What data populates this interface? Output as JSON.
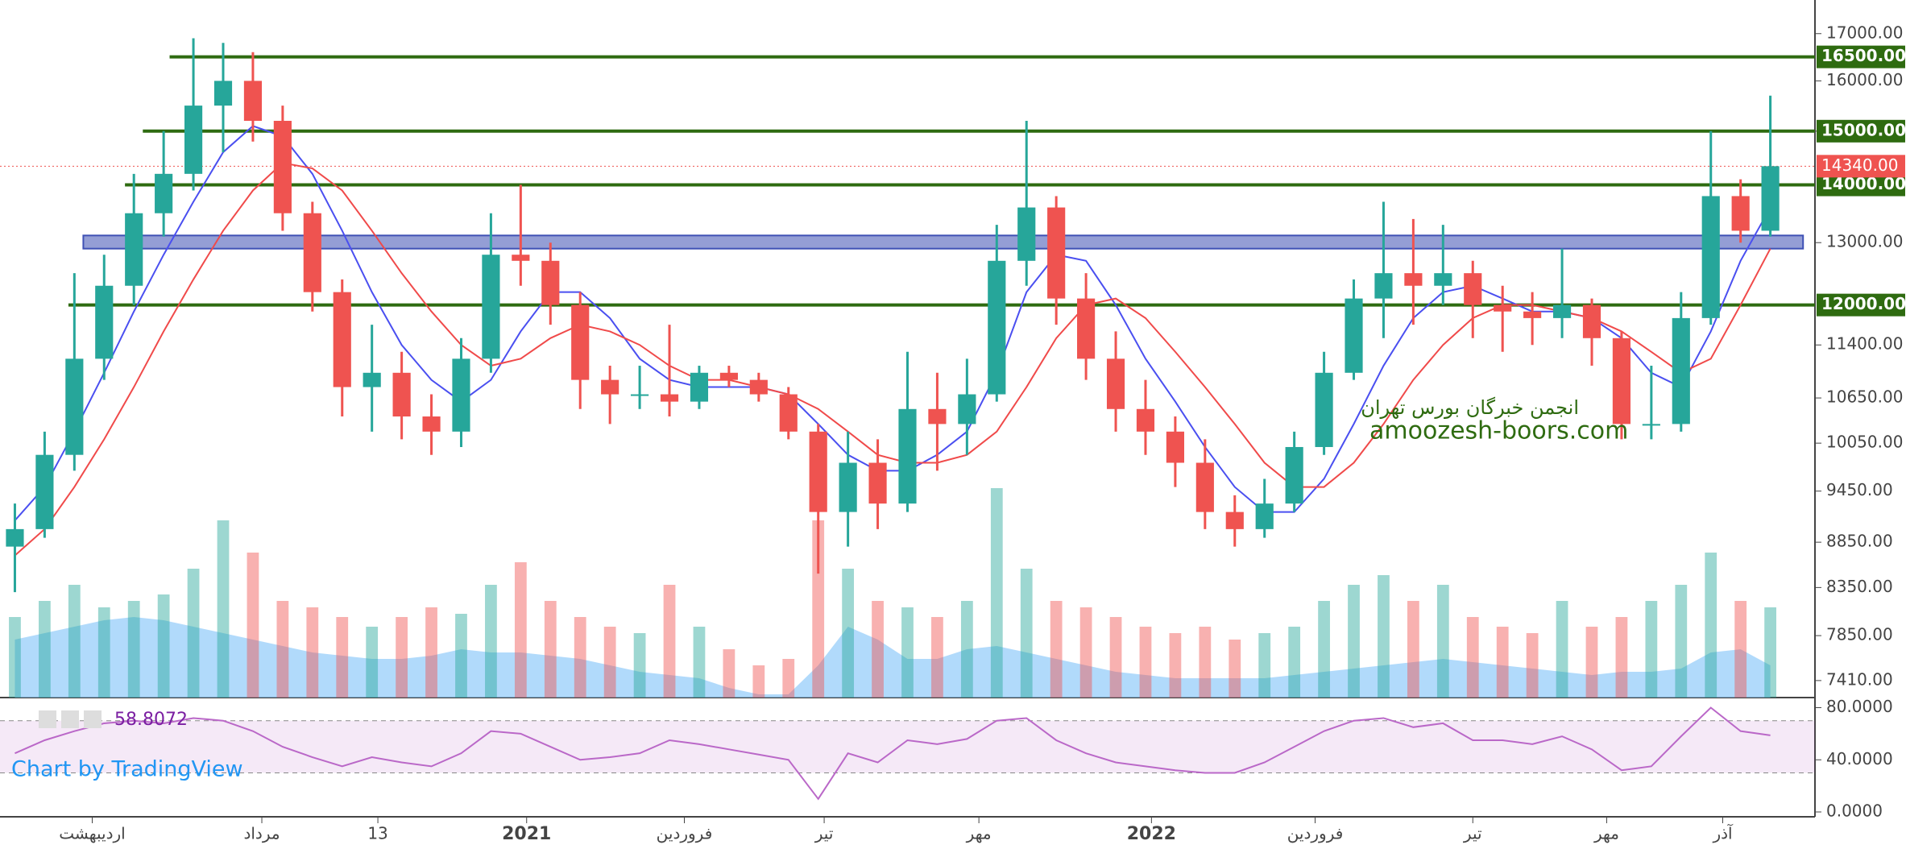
{
  "chart_data": {
    "type": "candlestick",
    "log_scale": true,
    "up_color": "#26a69a",
    "down_color": "#ef5350",
    "xlim": [
      -0.5,
      60.5
    ],
    "xticks": [
      {
        "value": 2.6,
        "label": "اردیبهشت"
      },
      {
        "value": 8.3,
        "label": "مرداد"
      },
      {
        "value": 12.2,
        "label": "13"
      },
      {
        "value": 17.2,
        "label": "2021"
      },
      {
        "value": 22.5,
        "label": "فروردین"
      },
      {
        "value": 27.2,
        "label": "تیر"
      },
      {
        "value": 32.4,
        "label": "مهر"
      },
      {
        "value": 38.2,
        "label": "2022"
      },
      {
        "value": 43.7,
        "label": "فروردین"
      },
      {
        "value": 49.0,
        "label": "تیر"
      },
      {
        "value": 53.5,
        "label": "مهر"
      },
      {
        "value": 57.4,
        "label": "آذر"
      }
    ],
    "ylim": [
      7250,
      17750
    ],
    "yticks": [
      {
        "value": 17000,
        "label": "17000.00"
      },
      {
        "value": 16000,
        "label": "16000.00"
      },
      {
        "value": 15000,
        "label": "15000.00"
      },
      {
        "value": 13000,
        "label": "13000.00"
      },
      {
        "value": 11400,
        "label": "11400.00"
      },
      {
        "value": 10650,
        "label": "10650.00"
      },
      {
        "value": 10050,
        "label": "10050.00"
      },
      {
        "value": 9450,
        "label": "9450.00"
      },
      {
        "value": 8850,
        "label": "8850.00"
      },
      {
        "value": 8350,
        "label": "8350.00"
      },
      {
        "value": 7850,
        "label": "7850.00"
      },
      {
        "value": 7410,
        "label": "7410.00"
      }
    ],
    "open": [
      8800,
      9000,
      9900,
      11200,
      12300,
      13500,
      14200,
      15500,
      16000,
      15200,
      13500,
      12200,
      10800,
      11000,
      10400,
      10200,
      11200,
      12800,
      12700,
      12000,
      10900,
      10700,
      10700,
      10600,
      11000,
      10900,
      10700,
      10200,
      9200,
      9800,
      9300,
      10500,
      10300,
      10700,
      12700,
      13600,
      12100,
      11200,
      10500,
      10200,
      9800,
      9200,
      9000,
      9300,
      10000,
      11000,
      12100,
      12500,
      12300,
      12500,
      12000,
      11900,
      11800,
      12000,
      11500,
      10300,
      10300,
      11800,
      13800,
      13200
    ],
    "high": [
      9300,
      10200,
      12500,
      12800,
      14200,
      15000,
      16900,
      16800,
      16600,
      15500,
      13700,
      12400,
      11700,
      11300,
      10700,
      11500,
      13500,
      14000,
      13000,
      12200,
      11100,
      11100,
      11700,
      11100,
      11100,
      11000,
      10800,
      10300,
      10200,
      10100,
      11300,
      11000,
      11200,
      13300,
      15200,
      13800,
      12500,
      11600,
      10900,
      10400,
      10100,
      9400,
      9600,
      10200,
      11300,
      12400,
      13700,
      13400,
      13300,
      12700,
      12300,
      12200,
      12900,
      12100,
      11600,
      11100,
      12200,
      15000,
      14100,
      15700
    ],
    "low": [
      8300,
      8900,
      9700,
      10900,
      12000,
      13100,
      13900,
      14600,
      14800,
      13200,
      11900,
      10400,
      10200,
      10100,
      9900,
      10000,
      11000,
      12300,
      11700,
      10500,
      10300,
      10500,
      10400,
      10500,
      10800,
      10600,
      10100,
      8500,
      8800,
      9000,
      9200,
      9700,
      9900,
      10600,
      12300,
      11700,
      10900,
      10200,
      9900,
      9500,
      9000,
      8800,
      8900,
      9200,
      9900,
      10900,
      11500,
      11700,
      12000,
      11500,
      11300,
      11400,
      11500,
      11100,
      10100,
      10100,
      10200,
      11700,
      13000,
      13100
    ],
    "close": [
      9000,
      9900,
      11200,
      12300,
      13500,
      14200,
      15500,
      16000,
      15200,
      13500,
      12200,
      10800,
      11000,
      10400,
      10200,
      11200,
      12800,
      12700,
      12000,
      10900,
      10700,
      10700,
      10600,
      11000,
      10900,
      10700,
      10200,
      9200,
      9800,
      9300,
      10500,
      10300,
      10700,
      12700,
      13600,
      12100,
      11200,
      10500,
      10200,
      9800,
      9200,
      9000,
      9300,
      10000,
      11000,
      12100,
      12500,
      12300,
      12500,
      12000,
      11900,
      11800,
      12000,
      11500,
      10300,
      10300,
      11800,
      13800,
      13200,
      14340
    ],
    "moving_averages": [
      {
        "color": "#4a4ff0",
        "values": [
          9100,
          9500,
          10200,
          11000,
          11900,
          12800,
          13700,
          14600,
          15100,
          14900,
          14200,
          13200,
          12200,
          11400,
          10900,
          10600,
          10900,
          11600,
          12200,
          12200,
          11800,
          11200,
          10900,
          10800,
          10800,
          10800,
          10700,
          10300,
          9900,
          9700,
          9700,
          9900,
          10200,
          11000,
          12200,
          12800,
          12700,
          12000,
          11200,
          10600,
          10000,
          9500,
          9200,
          9200,
          9600,
          10300,
          11100,
          11800,
          12200,
          12300,
          12100,
          11900,
          11900,
          11800,
          11500,
          11000,
          10800,
          11600,
          12700,
          13600
        ]
      },
      {
        "color": "#f04a4a",
        "values": [
          8700,
          9000,
          9500,
          10100,
          10800,
          11600,
          12400,
          13200,
          13900,
          14400,
          14300,
          13900,
          13200,
          12500,
          11900,
          11400,
          11100,
          11200,
          11500,
          11700,
          11600,
          11400,
          11100,
          10900,
          10900,
          10800,
          10700,
          10500,
          10200,
          9900,
          9800,
          9800,
          9900,
          10200,
          10800,
          11500,
          12000,
          12100,
          11800,
          11300,
          10800,
          10300,
          9800,
          9500,
          9500,
          9800,
          10300,
          10900,
          11400,
          11800,
          12000,
          12000,
          11900,
          11800,
          11600,
          11300,
          11000,
          11200,
          12000,
          12900
        ]
      }
    ],
    "volume": {
      "vlim": [
        0,
        100
      ],
      "ma_color": "#90caf9",
      "values": [
        25,
        30,
        35,
        28,
        30,
        32,
        40,
        55,
        45,
        30,
        28,
        25,
        22,
        25,
        28,
        26,
        35,
        42,
        30,
        25,
        22,
        20,
        35,
        22,
        15,
        10,
        12,
        55,
        40,
        30,
        28,
        25,
        30,
        65,
        40,
        30,
        28,
        25,
        22,
        20,
        22,
        18,
        20,
        22,
        30,
        35,
        38,
        30,
        35,
        25,
        22,
        20,
        30,
        22,
        25,
        30,
        35,
        45,
        30,
        28
      ],
      "ma_values": [
        18,
        20,
        22,
        24,
        25,
        24,
        22,
        20,
        18,
        16,
        14,
        13,
        12,
        12,
        13,
        15,
        14,
        14,
        13,
        12,
        10,
        8,
        7,
        6,
        3,
        1,
        1,
        10,
        22,
        18,
        12,
        12,
        15,
        16,
        14,
        12,
        10,
        8,
        7,
        6,
        6,
        6,
        6,
        7,
        8,
        9,
        10,
        11,
        12,
        11,
        10,
        9,
        8,
        7,
        8,
        8,
        9,
        14,
        15,
        10
      ]
    },
    "levels": [
      {
        "value": 16500,
        "label": "16500.00",
        "from": 5.2,
        "color": "#2e6b10"
      },
      {
        "value": 15000,
        "label": "15000.00",
        "from": 4.3,
        "color": "#2e6b10"
      },
      {
        "value": 14000,
        "label": "14000.00",
        "from": 3.7,
        "color": "#2e6b10"
      },
      {
        "value": 12000,
        "label": "12000.00",
        "from": 1.8,
        "color": "#2e6b10"
      }
    ],
    "current_price": {
      "value": 14340,
      "label": "14340.00",
      "color": "#ef5350"
    },
    "zone": [
      12900,
      13120
    ],
    "zone_from": 2.3,
    "zone_to": 60.1,
    "zone_color": "#7986cb",
    "rsi": {
      "ylim": [
        -3.7,
        86.5
      ],
      "bands": [
        30,
        70
      ],
      "color": "#ba68c8",
      "yticks": [
        {
          "value": 80,
          "label": "80.0000"
        },
        {
          "value": 40,
          "label": "40.0000"
        },
        {
          "value": 0,
          "label": "0.0000"
        }
      ],
      "values": [
        45,
        55,
        62,
        68,
        70,
        68,
        72,
        70,
        62,
        50,
        42,
        35,
        42,
        38,
        35,
        45,
        62,
        60,
        50,
        40,
        42,
        45,
        55,
        52,
        48,
        44,
        40,
        10,
        45,
        38,
        55,
        52,
        56,
        70,
        72,
        55,
        45,
        38,
        35,
        32,
        30,
        30,
        38,
        50,
        62,
        70,
        72,
        65,
        68,
        55,
        55,
        52,
        58,
        48,
        32,
        35,
        58,
        80,
        62,
        58.8072
      ]
    },
    "watermark_fa": "انجمن خبرگان بورس تهران",
    "watermark_site": "amoozesh-boors.com",
    "credit": "Chart by TradingView"
  }
}
